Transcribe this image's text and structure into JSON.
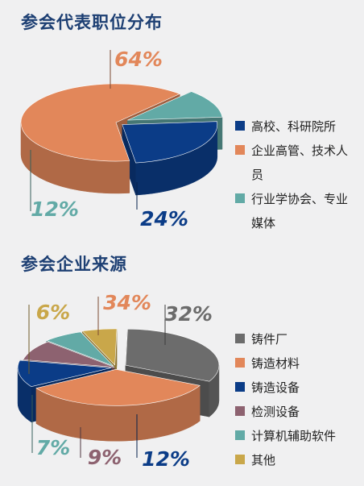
{
  "chart_data": [
    {
      "type": "pie",
      "title": "参会代表职位分布",
      "categories": [
        "高校、科研院所",
        "企业高管、技术人员",
        "行业学协会、专业媒体"
      ],
      "values": [
        24,
        64,
        12
      ],
      "value_labels": [
        "24%",
        "64%",
        "12%"
      ],
      "colors": [
        "#0b3c87",
        "#e2875a",
        "#62aaa6"
      ],
      "legend_position": "right",
      "style": "3d-exploded"
    },
    {
      "type": "pie",
      "title": "参会企业来源",
      "categories": [
        "铸件厂",
        "铸造材料",
        "铸造设备",
        "检测设备",
        "计算机辅助软件",
        "其他"
      ],
      "values": [
        32,
        34,
        12,
        9,
        7,
        6
      ],
      "value_labels": [
        "32%",
        "34%",
        "12%",
        "9%",
        "7%",
        "6%"
      ],
      "colors": [
        "#6c6c6c",
        "#e2875a",
        "#0b3c87",
        "#8d6270",
        "#62aaa6",
        "#c9a74a"
      ],
      "legend_position": "right",
      "style": "3d-exploded"
    }
  ]
}
